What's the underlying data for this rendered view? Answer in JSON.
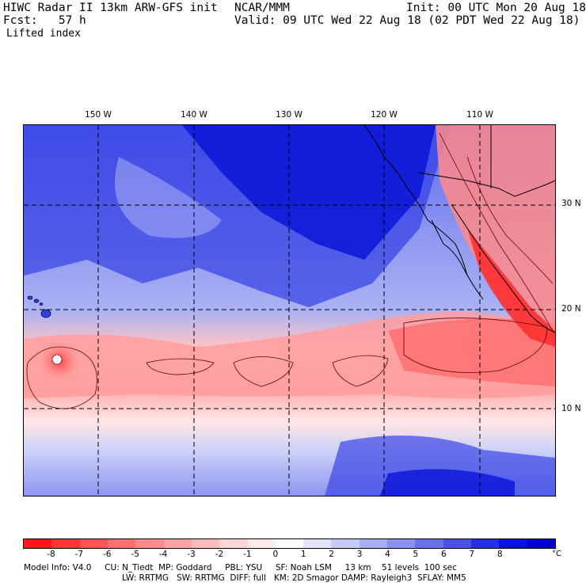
{
  "header": {
    "title": "HIWC Radar II 13km ARW-GFS init",
    "org": "NCAR/MMM",
    "init": "Init: 00 UTC Mon 20 Aug 18",
    "fcst": "Fcst:   57 h",
    "valid": "Valid: 09 UTC Wed 22 Aug 18 (02 PDT Wed 22 Aug 18)",
    "field": "Lifted index"
  },
  "map": {
    "lon_labels": [
      "150 W",
      "140 W",
      "130 W",
      "120 W",
      "110 W"
    ],
    "lat_labels": [
      "30 N",
      "20 N",
      "10 N"
    ]
  },
  "colorbar": {
    "labels": [
      "-8",
      "-7",
      "-6",
      "-5",
      "-4",
      "-3",
      "-2",
      "-1",
      "0",
      "1",
      "2",
      "3",
      "4",
      "5",
      "6",
      "7",
      "8"
    ],
    "unit": "°C",
    "colors": [
      "#ff1a1a",
      "#ff3838",
      "#ff5555",
      "#ff7070",
      "#ff8c8c",
      "#ffa3a3",
      "#ffbcbc",
      "#ffd6d6",
      "#ffeaea",
      "#ffffff",
      "#e3e5fb",
      "#c6cbf7",
      "#a8aef2",
      "#8a91ee",
      "#6a72ea",
      "#4a52e6",
      "#2530e0",
      "#0a14d8",
      "#0000cc"
    ]
  },
  "model_info": {
    "line1": "Model Info: V4.0     CU: N_Tiedt  MP: Goddard     PBL: YSU     SF: Noah LSM     13 km    51 levels  100 sec",
    "line2": "LW: RRTMG   SW: RRTMG  DIFF: full   KM: 2D Smagor DAMP: Rayleigh3  SFLAY: MM5"
  }
}
